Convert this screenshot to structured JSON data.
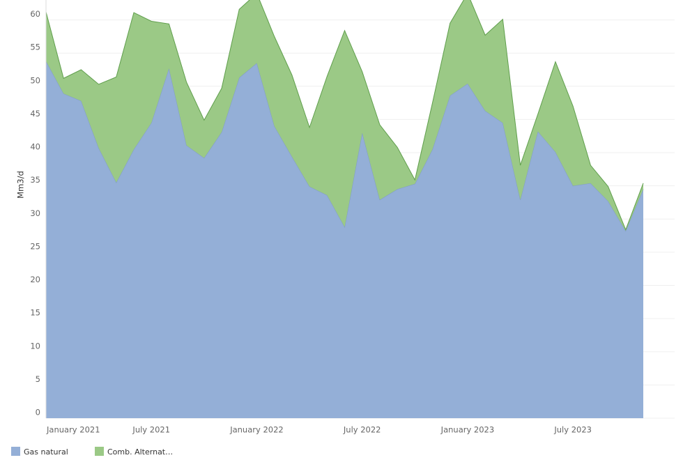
{
  "chart_data": {
    "type": "stacked_area",
    "y_label": "Mm3/d",
    "categories": [
      "January 2021",
      null,
      null,
      null,
      null,
      null,
      "July 2021",
      null,
      null,
      null,
      null,
      null,
      "January 2022",
      null,
      null,
      null,
      null,
      null,
      "July 2022",
      null,
      null,
      null,
      null,
      null,
      "January 2023",
      null,
      null,
      null,
      null,
      null,
      "July 2023",
      null,
      null,
      null,
      null
    ],
    "series": [
      {
        "name": "Gas natural",
        "color": "#94afd7",
        "stroke": "#7f9cc8",
        "values": [
          53.8,
          48.9,
          47.8,
          40.7,
          35.5,
          40.5,
          44.5,
          52.7,
          41.1,
          39.2,
          43.1,
          51.3,
          53.5,
          44.0,
          39.4,
          34.9,
          33.6,
          28.8,
          43.0,
          32.9,
          34.5,
          35.3,
          40.5,
          48.6,
          50.4,
          46.3,
          44.5,
          32.9,
          43.2,
          40.1,
          35.0,
          35.4,
          32.7,
          28.2,
          34.5
        ]
      },
      {
        "name": "Comb. Alternat…",
        "color": "#9bc986",
        "stroke": "#5f9e4c",
        "values": [
          7.4,
          2.3,
          4.7,
          9.6,
          15.9,
          20.6,
          15.3,
          6.7,
          9.5,
          5.7,
          6.6,
          10.3,
          10.5,
          13.5,
          12.3,
          8.9,
          17.9,
          29.6,
          9.2,
          11.3,
          6.3,
          0.6,
          7.0,
          10.9,
          13.6,
          11.4,
          15.6,
          5.2,
          2.6,
          13.6,
          12.0,
          2.7,
          2.2,
          0.2,
          0.9
        ]
      }
    ],
    "ylim": [
      0,
      63
    ],
    "yticks": [
      0,
      5,
      10,
      15,
      20,
      25,
      30,
      35,
      40,
      45,
      50,
      55,
      60
    ],
    "grid": true
  }
}
